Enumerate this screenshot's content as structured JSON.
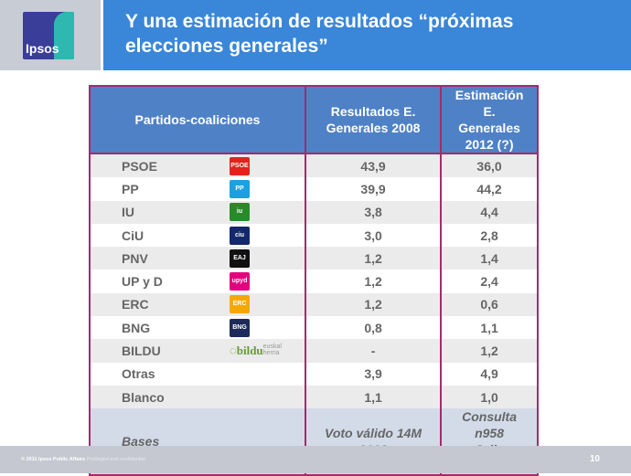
{
  "logo": {
    "text": "Ipsos"
  },
  "title": "Y una estimación de resultados “próximas elecciones generales”",
  "table": {
    "headers": [
      "Partidos-coaliciones",
      "Resultados E. Generales 2008",
      "Estimación E. Generales 2012 (?)"
    ],
    "rows": [
      {
        "party": "PSOE",
        "logo": "PSOE",
        "r2008": "43,9",
        "e2012": "36,0",
        "color": "#e2231a"
      },
      {
        "party": "PP",
        "logo": "PP",
        "r2008": "39,9",
        "e2012": "44,2",
        "color": "#1ba1e2"
      },
      {
        "party": "IU",
        "logo": "iu",
        "r2008": "3,8",
        "e2012": "4,4",
        "color": "#2a8a2a"
      },
      {
        "party": "CiU",
        "logo": "ciu",
        "r2008": "3,0",
        "e2012": "2,8",
        "color": "#14296b"
      },
      {
        "party": "PNV",
        "logo": "EAJ PNV",
        "r2008": "1,2",
        "e2012": "1,4",
        "color": "#111111"
      },
      {
        "party": "UP y D",
        "logo": "upyd",
        "r2008": "1,2",
        "e2012": "2,4",
        "color": "#e4007c"
      },
      {
        "party": "ERC",
        "logo": "ERC",
        "r2008": "1,2",
        "e2012": "0,6",
        "color": "#f5a800"
      },
      {
        "party": "BNG",
        "logo": "BNG",
        "r2008": "0,8",
        "e2012": "1,1",
        "color": "#1e2a5a"
      },
      {
        "party": "BILDU",
        "logo": "bildu",
        "logo_sub": "euskal herria",
        "r2008": "-",
        "e2012": "1,2",
        "color": "#6a9a3a"
      },
      {
        "party": "Otras",
        "logo": "",
        "r2008": "3,9",
        "e2012": "4,9"
      },
      {
        "party": "Blanco",
        "logo": "",
        "r2008": "1,1",
        "e2012": "1,0"
      }
    ],
    "bases": {
      "label": "Bases",
      "r2008": "Voto válido 14M 2008",
      "e2012": "Consulta n958 Julio 2011"
    }
  },
  "footer": {
    "copyright": "© 2011 Ipsos Public Affairs",
    "note": "Privileged and confidential",
    "page": "10"
  }
}
